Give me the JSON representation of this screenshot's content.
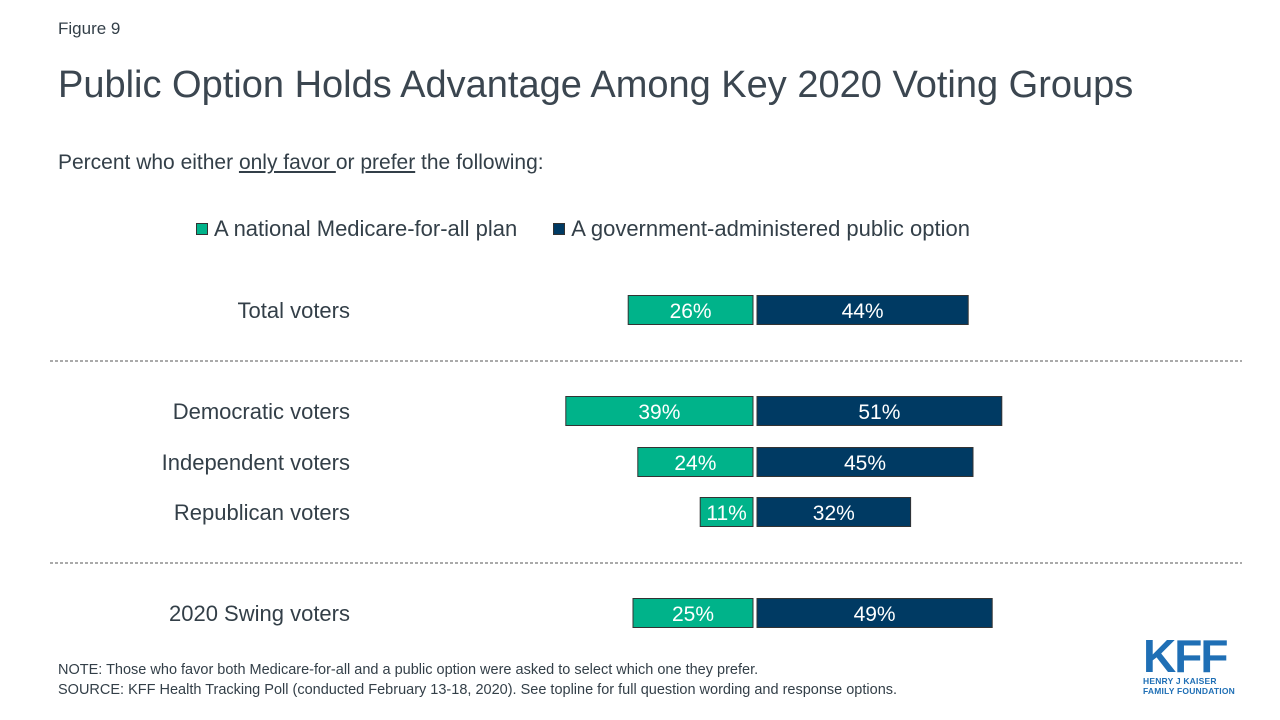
{
  "figure_label": "Figure 9",
  "subtitle": {
    "prefix": "Percent who either ",
    "emph1": "only favor ",
    "middle": "or ",
    "emph2": "prefer",
    "suffix": " the following:"
  },
  "colors": {
    "medicare": "#00b38a",
    "public_option": "#003a63",
    "divider": "#555555"
  },
  "chart_data": {
    "type": "bar",
    "orientation": "horizontal-diverging",
    "title": "Public Option Holds Advantage Among Key 2020 Voting Groups",
    "categories": [
      "Total voters",
      "Democratic voters",
      "Independent voters",
      "Republican voters",
      "2020 Swing voters"
    ],
    "groups": [
      [
        "Total voters"
      ],
      [
        "Democratic voters",
        "Independent voters",
        "Republican voters"
      ],
      [
        "2020 Swing voters"
      ]
    ],
    "series": [
      {
        "name": "A national Medicare-for-all plan",
        "values": [
          26,
          39,
          24,
          11,
          25
        ],
        "labels": [
          "26%",
          "39%",
          "24%",
          "11%",
          "25%"
        ]
      },
      {
        "name": "A government-administered public option",
        "values": [
          44,
          51,
          45,
          32,
          49
        ],
        "labels": [
          "44%",
          "51%",
          "45%",
          "32%",
          "49%"
        ]
      }
    ],
    "legend": "top",
    "grid": false
  },
  "footer": {
    "note": "NOTE: Those who favor both Medicare-for-all and a public option were asked to select which one they prefer.",
    "source": "SOURCE: KFF Health Tracking Poll (conducted February 13-18, 2020). See topline for full question wording and response options."
  },
  "logo": {
    "mark": "KFF",
    "line1": "HENRY J KAISER",
    "line2": "FAMILY FOUNDATION"
  }
}
